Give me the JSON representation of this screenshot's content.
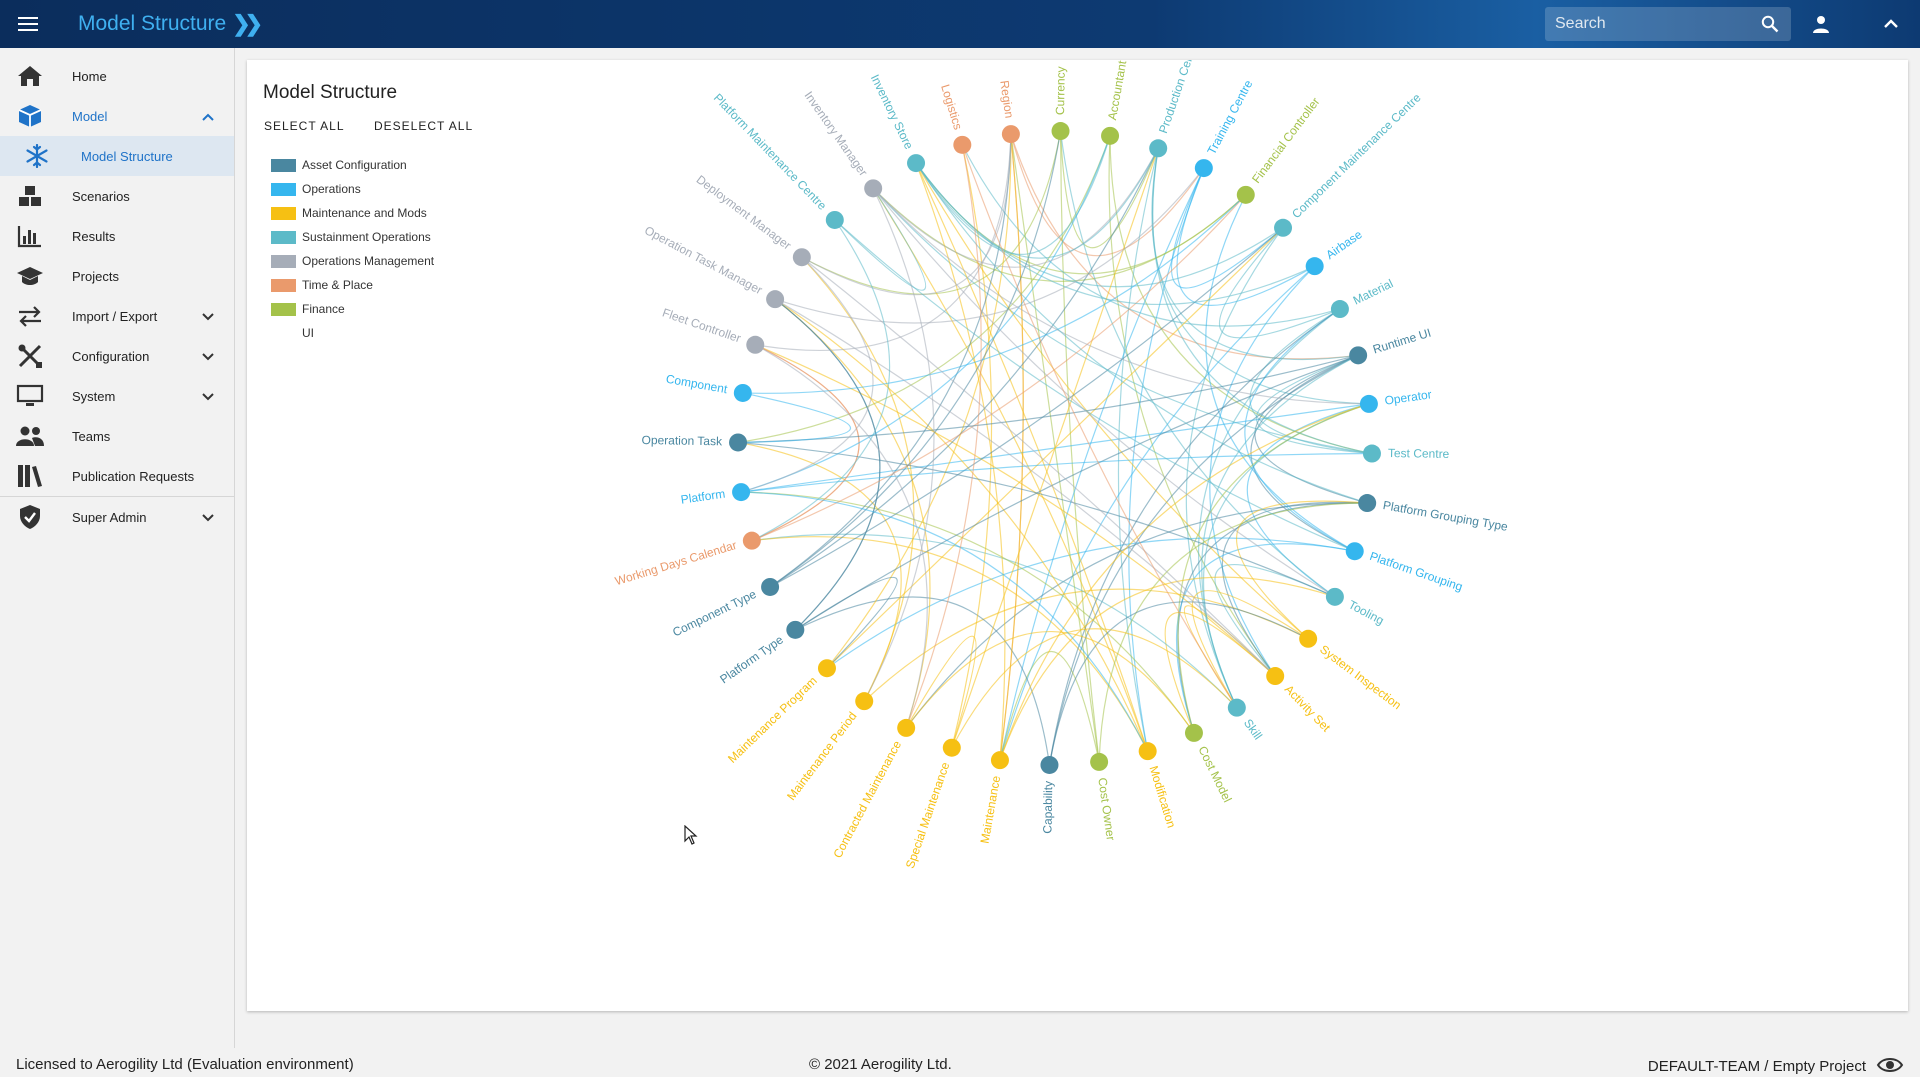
{
  "header": {
    "app_title": "Model Structure",
    "search_placeholder": "Search"
  },
  "sidebar": {
    "items": [
      {
        "label": "Home",
        "icon": "home-icon"
      },
      {
        "label": "Model",
        "icon": "cube-icon",
        "expanded": true
      },
      {
        "label": "Model Structure",
        "icon": "snowflake-icon",
        "selected": true
      },
      {
        "label": "Scenarios",
        "icon": "boxes-icon"
      },
      {
        "label": "Results",
        "icon": "bar-chart-icon"
      },
      {
        "label": "Projects",
        "icon": "graduation-cap-icon"
      },
      {
        "label": "Import / Export",
        "icon": "swap-arrows-icon"
      },
      {
        "label": "Configuration",
        "icon": "tools-icon"
      },
      {
        "label": "System",
        "icon": "monitor-icon"
      },
      {
        "label": "Teams",
        "icon": "people-icon"
      },
      {
        "label": "Publication Requests",
        "icon": "books-icon"
      },
      {
        "label": "Super Admin",
        "icon": "shield-check-icon"
      }
    ]
  },
  "main": {
    "title": "Model Structure",
    "select_all": "SELECT ALL",
    "deselect_all": "DESELECT ALL",
    "legend": [
      {
        "label": "Asset Configuration",
        "color": "#4a87a0"
      },
      {
        "label": "Operations",
        "color": "#35b6ee"
      },
      {
        "label": "Maintenance and Mods",
        "color": "#f6c013"
      },
      {
        "label": "Sustainment Operations",
        "color": "#5cbac8"
      },
      {
        "label": "Operations Management",
        "color": "#a6adb8"
      },
      {
        "label": "Time & Place",
        "color": "#ea9a6c"
      },
      {
        "label": "Finance",
        "color": "#a4c24a"
      },
      {
        "label": "UI",
        "color": ""
      }
    ]
  },
  "chord_nodes": [
    {
      "label": "Region",
      "group": "Time & Place"
    },
    {
      "label": "Currency",
      "group": "Finance"
    },
    {
      "label": "Accountant",
      "group": "Finance"
    },
    {
      "label": "Production Centre",
      "group": "Sustainment Operations"
    },
    {
      "label": "Training Centre",
      "group": "Operations"
    },
    {
      "label": "Financial Controller",
      "group": "Finance"
    },
    {
      "label": "Component Maintenance Centre",
      "group": "Sustainment Operations"
    },
    {
      "label": "Airbase",
      "group": "Operations"
    },
    {
      "label": "Material",
      "group": "Sustainment Operations"
    },
    {
      "label": "Runtime UI",
      "group": "Asset Configuration"
    },
    {
      "label": "Operator",
      "group": "Operations"
    },
    {
      "label": "Test Centre",
      "group": "Sustainment Operations"
    },
    {
      "label": "Platform Grouping Type",
      "group": "Asset Configuration"
    },
    {
      "label": "Platform Grouping",
      "group": "Operations"
    },
    {
      "label": "Tooling",
      "group": "Sustainment Operations"
    },
    {
      "label": "System Inspection",
      "group": "Maintenance and Mods"
    },
    {
      "label": "Activity Set",
      "group": "Maintenance and Mods"
    },
    {
      "label": "Skill",
      "group": "Sustainment Operations"
    },
    {
      "label": "Cost Model",
      "group": "Finance"
    },
    {
      "label": "Modification",
      "group": "Maintenance and Mods"
    },
    {
      "label": "Cost Owner",
      "group": "Finance"
    },
    {
      "label": "Capability",
      "group": "Asset Configuration"
    },
    {
      "label": "Maintenance",
      "group": "Maintenance and Mods"
    },
    {
      "label": "Special Maintenance",
      "group": "Maintenance and Mods"
    },
    {
      "label": "Contracted Maintenance",
      "group": "Maintenance and Mods"
    },
    {
      "label": "Maintenance Period",
      "group": "Maintenance and Mods"
    },
    {
      "label": "Maintenance Program",
      "group": "Maintenance and Mods"
    },
    {
      "label": "Platform Type",
      "group": "Asset Configuration"
    },
    {
      "label": "Component Type",
      "group": "Asset Configuration"
    },
    {
      "label": "Working Days Calendar",
      "group": "Time & Place"
    },
    {
      "label": "Platform",
      "group": "Operations"
    },
    {
      "label": "Operation Task",
      "group": "Asset Configuration"
    },
    {
      "label": "Component",
      "group": "Operations"
    },
    {
      "label": "Fleet Controller",
      "group": "Operations Management"
    },
    {
      "label": "Operation Task Manager",
      "group": "Operations Management"
    },
    {
      "label": "Deployment Manager",
      "group": "Operations Management"
    },
    {
      "label": "Platform Maintenance Centre",
      "group": "Sustainment Operations"
    },
    {
      "label": "Inventory Manager",
      "group": "Operations Management"
    },
    {
      "label": "Inventory Store",
      "group": "Sustainment Operations"
    },
    {
      "label": "Logistics",
      "group": "Time & Place"
    }
  ],
  "footer": {
    "license": "Licensed to Aerogility Ltd (Evaluation environment)",
    "copyright": "© 2021 Aerogility Ltd.",
    "project": "DEFAULT-TEAM / Empty Project"
  }
}
